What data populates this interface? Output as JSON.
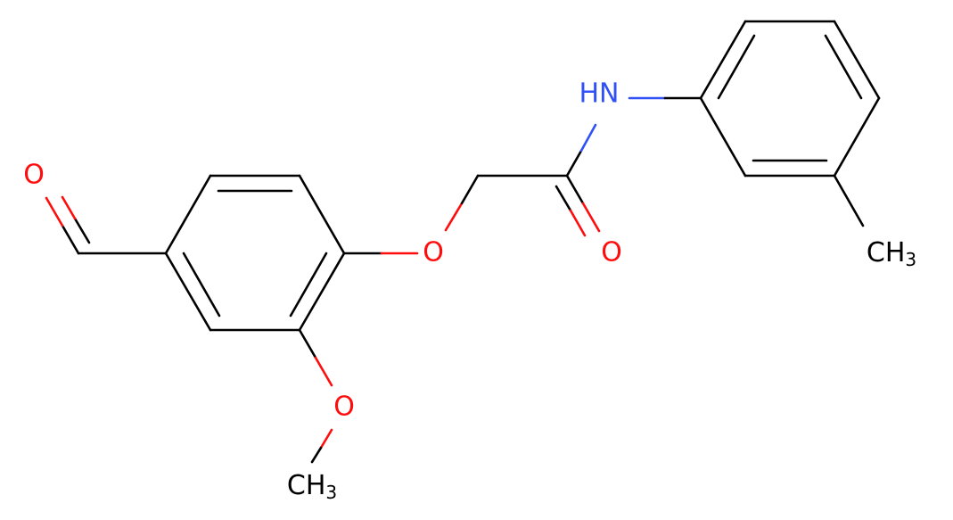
{
  "atoms": [
    {
      "label": "O"
    },
    {
      "label": "O"
    },
    {
      "label": "O"
    },
    {
      "label": "HN"
    },
    {
      "label": "O"
    },
    {
      "label": "CH",
      "sub": "3"
    },
    {
      "label": "CH",
      "sub": "3"
    }
  ]
}
